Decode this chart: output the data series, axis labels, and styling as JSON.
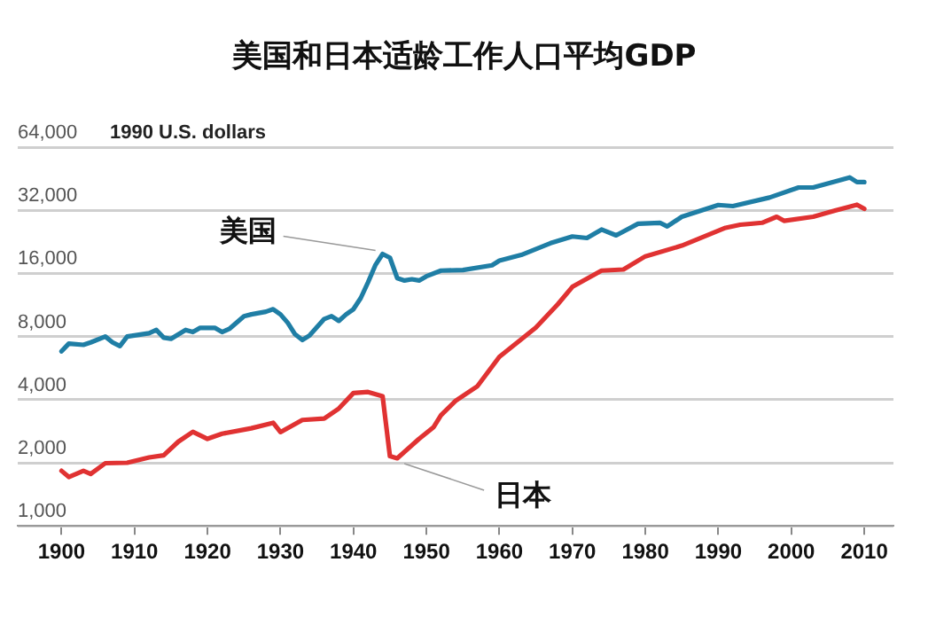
{
  "chart_data": {
    "type": "line",
    "title": "美国和日本适龄工作人口平均GDP",
    "ylabel": "1990 U.S. dollars",
    "log": "y",
    "grid": "y",
    "legend": false,
    "marker": "none",
    "line_style": "solid",
    "xlim": [
      1894,
      2014
    ],
    "xticks": [
      1900,
      1910,
      1920,
      1930,
      1940,
      1950,
      1960,
      1970,
      1980,
      1990,
      2000,
      2010
    ],
    "ylim": [
      1000,
      64000
    ],
    "yticks": [
      {
        "value": 1000,
        "label": "1,000"
      },
      {
        "value": 2000,
        "label": "2,000"
      },
      {
        "value": 4000,
        "label": "4,000"
      },
      {
        "value": 8000,
        "label": "8,000"
      },
      {
        "value": 16000,
        "label": "16,000"
      },
      {
        "value": 32000,
        "label": "32,000"
      },
      {
        "value": 64000,
        "label": "64,000"
      }
    ],
    "series": [
      {
        "name": "美国",
        "color": "#1f7ea5",
        "x": [
          1900,
          1901,
          1903,
          1904,
          1906,
          1907,
          1908,
          1909,
          1912,
          1913,
          1914,
          1915,
          1917,
          1918,
          1919,
          1921,
          1922,
          1923,
          1925,
          1926,
          1928,
          1929,
          1930,
          1931,
          1932,
          1933,
          1934,
          1936,
          1937,
          1938,
          1939,
          1940,
          1941,
          1942,
          1943,
          1944,
          1945,
          1946,
          1947,
          1948,
          1949,
          1950,
          1952,
          1955,
          1959,
          1960,
          1963,
          1967,
          1970,
          1972,
          1974,
          1976,
          1979,
          1982,
          1983,
          1985,
          1990,
          1992,
          1997,
          2001,
          2003,
          2008,
          2009,
          2010
        ],
        "values": [
          6800,
          7400,
          7300,
          7500,
          8000,
          7500,
          7200,
          8000,
          8300,
          8600,
          7900,
          7800,
          8600,
          8400,
          8800,
          8800,
          8400,
          8700,
          10000,
          10200,
          10500,
          10800,
          10200,
          9300,
          8200,
          7700,
          8100,
          9700,
          10000,
          9500,
          10200,
          10800,
          12200,
          14500,
          17500,
          19800,
          19000,
          15200,
          14800,
          15000,
          14800,
          15500,
          16500,
          16600,
          17500,
          18400,
          19600,
          22300,
          24000,
          23600,
          25900,
          24300,
          27600,
          27900,
          26800,
          29800,
          33900,
          33500,
          36800,
          41100,
          41100,
          45900,
          43600,
          43600
        ]
      },
      {
        "name": "日本",
        "color": "#e03232",
        "x": [
          1900,
          1901,
          1903,
          1904,
          1906,
          1909,
          1912,
          1914,
          1916,
          1918,
          1920,
          1922,
          1926,
          1929,
          1930,
          1933,
          1936,
          1938,
          1940,
          1942,
          1944,
          1945,
          1946,
          1949,
          1951,
          1952,
          1954,
          1957,
          1960,
          1963,
          1965,
          1968,
          1970,
          1974,
          1977,
          1980,
          1985,
          1991,
          1993,
          1996,
          1998,
          1999,
          2003,
          2006,
          2009,
          2010
        ],
        "values": [
          1830,
          1710,
          1830,
          1770,
          1990,
          2000,
          2120,
          2170,
          2520,
          2810,
          2600,
          2750,
          2920,
          3100,
          2800,
          3200,
          3250,
          3630,
          4300,
          4350,
          4150,
          2150,
          2100,
          2600,
          2960,
          3370,
          3950,
          4640,
          6400,
          7760,
          8820,
          11400,
          13800,
          16500,
          16700,
          19300,
          21700,
          26400,
          27300,
          27900,
          29800,
          28500,
          29800,
          31900,
          34000,
          32500
        ]
      }
    ]
  }
}
